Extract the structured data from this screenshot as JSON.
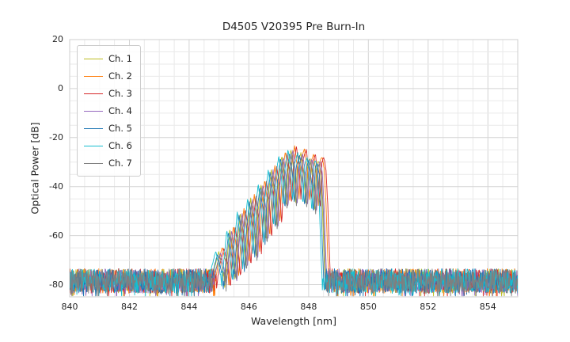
{
  "chart_data": {
    "type": "line",
    "title": "D4505 V20395 Pre Burn-In",
    "xlabel": "Wavelength [nm]",
    "ylabel": "Optical Power [dB]",
    "xlim": [
      840,
      855
    ],
    "ylim": [
      -85,
      20
    ],
    "xticks": [
      840,
      842,
      844,
      846,
      848,
      850,
      852,
      854
    ],
    "yticks": [
      20,
      0,
      -20,
      -40,
      -60,
      -80
    ],
    "grid": {
      "on": true,
      "major_color": "#d4d4d4",
      "minor_color": "#eaeaea",
      "minor_x_step_nm": 0.5,
      "minor_y_step_db": 5,
      "border_color": "#cfcfcf"
    },
    "legend": {
      "position": "upper-left"
    },
    "series": [
      {
        "name": "Ch. 1",
        "color": "#bcbd22",
        "offset_nm": -0.16,
        "gain_db": -0.5,
        "seed": 101
      },
      {
        "name": "Ch. 2",
        "color": "#ff7f0e",
        "offset_nm": -0.04,
        "gain_db": 1.2,
        "seed": 102
      },
      {
        "name": "Ch. 3",
        "color": "#d62728",
        "offset_nm": 0.02,
        "gain_db": 0.8,
        "seed": 103
      },
      {
        "name": "Ch. 4",
        "color": "#9467bd",
        "offset_nm": -0.1,
        "gain_db": -0.8,
        "seed": 104
      },
      {
        "name": "Ch. 5",
        "color": "#1f77b4",
        "offset_nm": -0.2,
        "gain_db": -1.5,
        "seed": 105
      },
      {
        "name": "Ch. 6",
        "color": "#17becf",
        "offset_nm": -0.26,
        "gain_db": -0.5,
        "seed": 106
      },
      {
        "name": "Ch. 7",
        "color": "#7f7f7f",
        "offset_nm": -0.13,
        "gain_db": -2.0,
        "seed": 107
      }
    ],
    "noise": {
      "floor_db": -78.5,
      "amplitude_db": 5,
      "spike_chance": 0.06,
      "spike_db": 3.5,
      "step_nm": 0.015
    },
    "envelope": [
      [
        844.9,
        -82
      ],
      [
        845.0,
        -73
      ],
      [
        845.15,
        -66
      ],
      [
        845.28,
        -73
      ],
      [
        845.36,
        -82
      ],
      [
        845.42,
        -70
      ],
      [
        845.52,
        -57
      ],
      [
        845.62,
        -66
      ],
      [
        845.7,
        -78
      ],
      [
        845.77,
        -63
      ],
      [
        845.87,
        -50
      ],
      [
        845.97,
        -60
      ],
      [
        846.05,
        -73
      ],
      [
        846.12,
        -55
      ],
      [
        846.22,
        -44.5
      ],
      [
        846.32,
        -55
      ],
      [
        846.4,
        -68
      ],
      [
        846.46,
        -50
      ],
      [
        846.57,
        -38.5
      ],
      [
        846.67,
        -48
      ],
      [
        846.74,
        -62
      ],
      [
        846.8,
        -44
      ],
      [
        846.91,
        -32.5
      ],
      [
        847.01,
        -42
      ],
      [
        847.08,
        -56
      ],
      [
        847.15,
        -37
      ],
      [
        847.26,
        -26.8
      ],
      [
        847.35,
        -36
      ],
      [
        847.41,
        -48
      ],
      [
        847.47,
        -32
      ],
      [
        847.57,
        -24.5
      ],
      [
        847.66,
        -33
      ],
      [
        847.72,
        -46
      ],
      [
        847.78,
        -30.5
      ],
      [
        847.9,
        -25.8
      ],
      [
        848.0,
        -35
      ],
      [
        848.07,
        -47
      ],
      [
        848.13,
        -30.5
      ],
      [
        848.21,
        -27.8
      ],
      [
        848.31,
        -38
      ],
      [
        848.37,
        -50
      ],
      [
        848.42,
        -31
      ],
      [
        848.49,
        -28.8
      ],
      [
        848.56,
        -34
      ],
      [
        848.62,
        -48
      ],
      [
        848.67,
        -66
      ],
      [
        848.72,
        -82
      ]
    ]
  }
}
